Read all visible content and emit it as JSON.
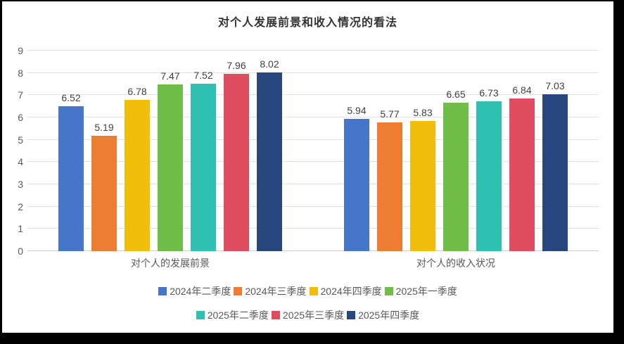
{
  "chart_data": {
    "type": "bar",
    "title": "对个人发展前景和收入情况的看法",
    "categories": [
      "对个人的发展前景",
      "对个人的收入状况"
    ],
    "series": [
      {
        "name": "2024年二季度",
        "color": "#4675c9",
        "values": [
          6.52,
          5.94
        ]
      },
      {
        "name": "2024年三季度",
        "color": "#ec7d33",
        "values": [
          5.19,
          5.77
        ]
      },
      {
        "name": "2024年四季度",
        "color": "#f2be0c",
        "values": [
          6.78,
          5.83
        ]
      },
      {
        "name": "2025年一季度",
        "color": "#70be49",
        "values": [
          7.47,
          6.65
        ]
      },
      {
        "name": "2025年二季度",
        "color": "#2fc0b2",
        "values": [
          7.52,
          6.73
        ]
      },
      {
        "name": "2025年三季度",
        "color": "#e04d60",
        "values": [
          7.96,
          6.84
        ]
      },
      {
        "name": "2025年四季度",
        "color": "#27477e",
        "values": [
          8.02,
          7.03
        ]
      }
    ],
    "ylim": [
      0,
      9
    ],
    "ytick_step": 1,
    "grid": true,
    "value_labels": true,
    "value_decimals": 2,
    "legend_position": "bottom",
    "legend_rows": [
      4,
      3
    ],
    "colors": {
      "gridline": "#e2e2e2",
      "axis_line": "#cfcfcf",
      "tick_text": "#595959",
      "value_text": "#404040",
      "title_text": "#333333",
      "frame_border": "#000000",
      "background": "#ffffff"
    }
  }
}
